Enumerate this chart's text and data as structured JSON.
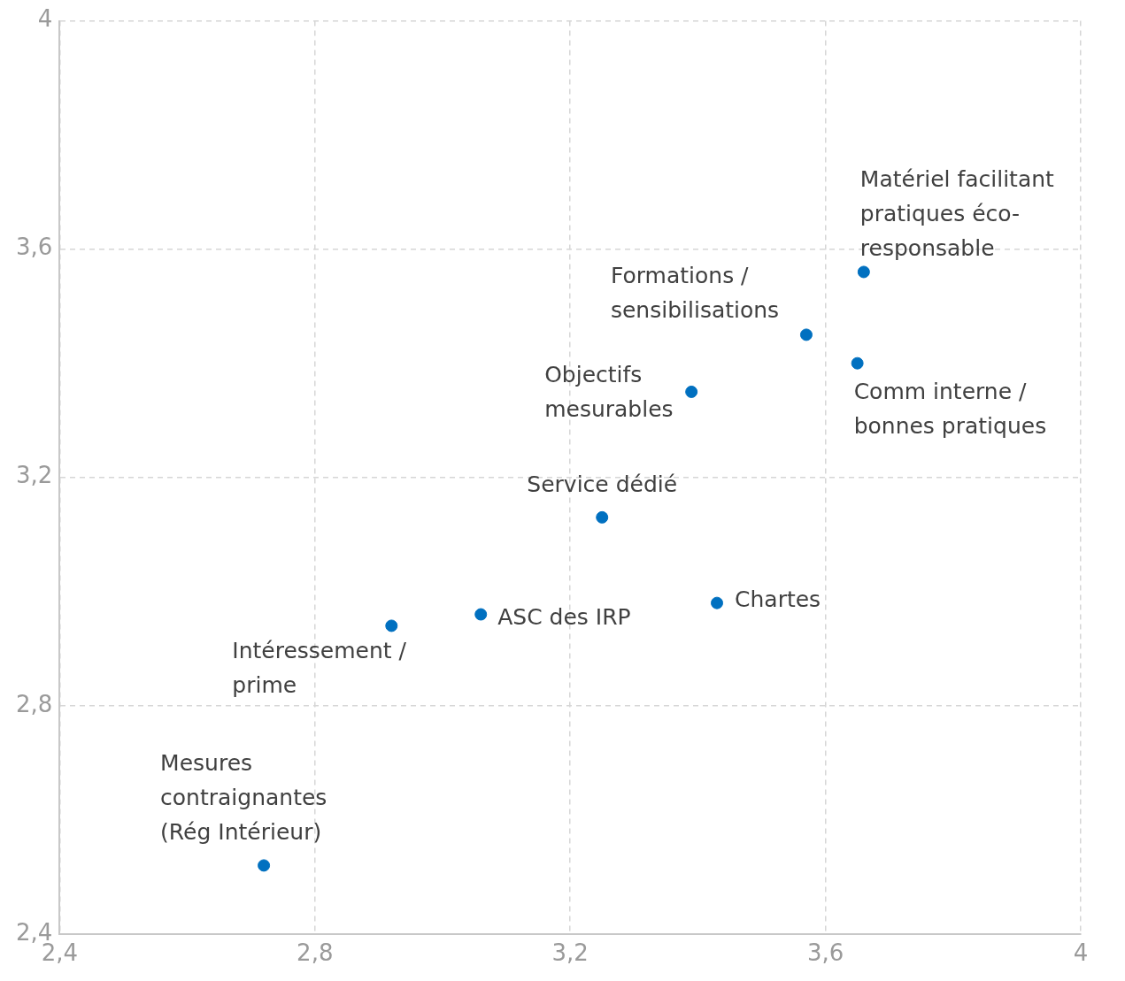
{
  "chart_data": {
    "type": "scatter",
    "color": "#0070c0",
    "marker": "circle",
    "grid": true,
    "x": [
      3.66,
      3.57,
      3.65,
      3.39,
      3.25,
      3.43,
      3.06,
      2.92,
      2.72
    ],
    "values": [
      3.56,
      3.45,
      3.4,
      3.35,
      3.13,
      2.98,
      2.96,
      2.94,
      2.52
    ],
    "xlim": [
      2.4,
      4
    ],
    "ylim": [
      2.4,
      4
    ],
    "xticks": [
      {
        "value": 2.4,
        "label": "2,4"
      },
      {
        "value": 2.8,
        "label": "2,8"
      },
      {
        "value": 3.2,
        "label": "3,2"
      },
      {
        "value": 3.6,
        "label": "3,6"
      },
      {
        "value": 4,
        "label": "4"
      }
    ],
    "yticks": [
      {
        "value": 2.4,
        "label": "2,4"
      },
      {
        "value": 2.8,
        "label": "2,8"
      },
      {
        "value": 3.2,
        "label": "3,2"
      },
      {
        "value": 3.6,
        "label": "3,6"
      },
      {
        "value": 4,
        "label": "4"
      }
    ],
    "annotations": [
      {
        "text": "Matériel facilitant pratiques éco-responsable",
        "x": 3.66,
        "y": 3.56
      },
      {
        "text": "Formations / sensibilisations",
        "x": 3.57,
        "y": 3.45
      },
      {
        "text": "Comm interne / bonnes pratiques",
        "x": 3.65,
        "y": 3.4
      },
      {
        "text": "Objectifs mesurables",
        "x": 3.39,
        "y": 3.35
      },
      {
        "text": "Service dédié",
        "x": 3.25,
        "y": 3.13
      },
      {
        "text": "Chartes",
        "x": 3.43,
        "y": 2.98
      },
      {
        "text": "ASC des IRP",
        "x": 3.06,
        "y": 2.96
      },
      {
        "text": "Intéressement / prime",
        "x": 2.92,
        "y": 2.94
      },
      {
        "text": "Mesures contraignantes (Rég Intérieur)",
        "x": 2.72,
        "y": 2.52
      }
    ]
  }
}
